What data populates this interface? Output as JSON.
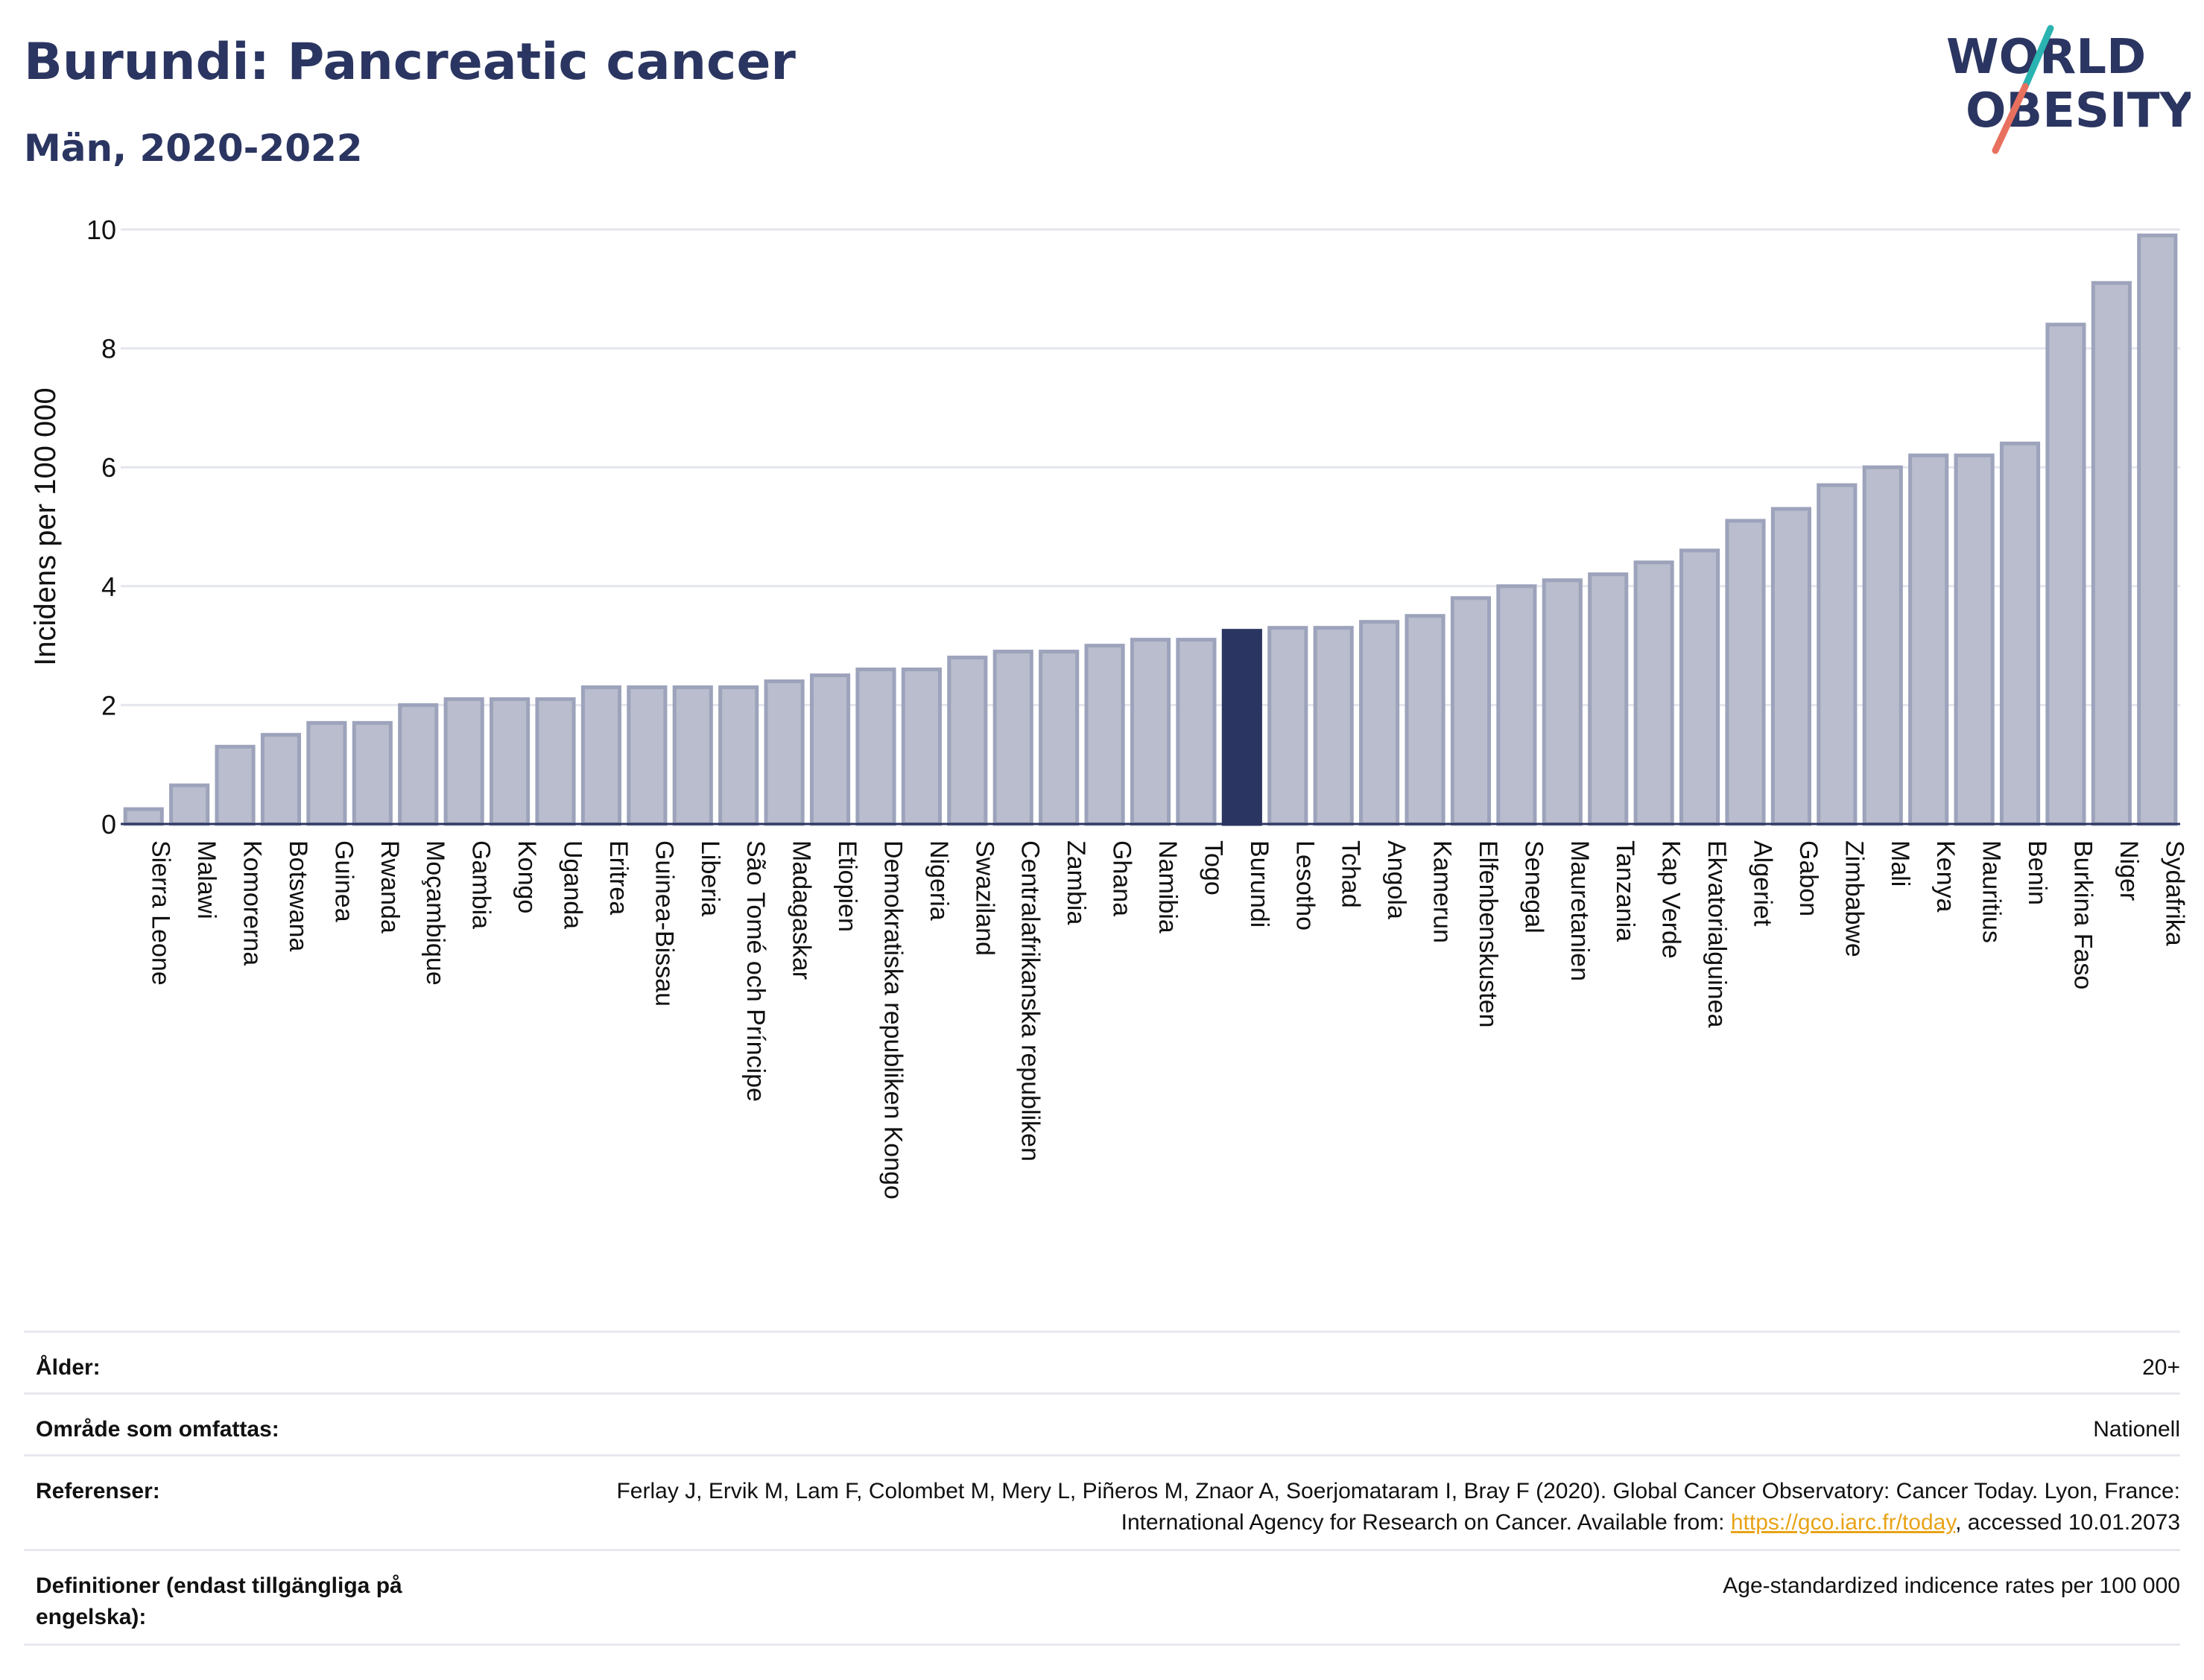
{
  "header": {
    "title": "Burundi: Pancreatic cancer",
    "subtitle": "Män, 2020-2022"
  },
  "logo": {
    "line1": "WORLD",
    "line2": "OBESITY",
    "icon": "world-obesity-logo"
  },
  "colors": {
    "bar": "#b9bdcd",
    "bar_border": "#9da3bb",
    "highlight": "#2b3561",
    "title": "#2b3561",
    "grid": "#e4e6ee"
  },
  "chart_data": {
    "type": "bar",
    "title": "Burundi: Pancreatic cancer",
    "subtitle": "Män, 2020-2022",
    "ylabel": "Incidens per 100 000",
    "xlabel": "",
    "ylim": [
      0,
      10
    ],
    "yticks": [
      0,
      2,
      4,
      6,
      8,
      10
    ],
    "grid": true,
    "highlight": "Burundi",
    "categories": [
      "Sierra Leone",
      "Malawi",
      "Komorerna",
      "Botswana",
      "Guinea",
      "Rwanda",
      "Moçambique",
      "Gambia",
      "Kongo",
      "Uganda",
      "Eritrea",
      "Guinea-Bissau",
      "Liberia",
      "São Tomé och Príncipe",
      "Madagaskar",
      "Etiopien",
      "Demokratiska republiken Kongo",
      "Nigeria",
      "Swaziland",
      "Centralafrikanska republiken",
      "Zambia",
      "Ghana",
      "Namibia",
      "Togo",
      "Burundi",
      "Lesotho",
      "Tchad",
      "Angola",
      "Kamerun",
      "Elfenbenskusten",
      "Senegal",
      "Mauretanien",
      "Tanzania",
      "Kap Verde",
      "Ekvatorialguinea",
      "Algeriet",
      "Gabon",
      "Zimbabwe",
      "Mali",
      "Kenya",
      "Mauritius",
      "Benin",
      "Burkina Faso",
      "Niger",
      "Sydafrika"
    ],
    "values": [
      0.25,
      0.65,
      1.3,
      1.5,
      1.7,
      1.7,
      2.0,
      2.1,
      2.1,
      2.1,
      2.3,
      2.3,
      2.3,
      2.3,
      2.4,
      2.5,
      2.6,
      2.6,
      2.8,
      2.9,
      2.9,
      3.0,
      3.1,
      3.1,
      3.25,
      3.3,
      3.3,
      3.4,
      3.5,
      3.8,
      4.0,
      4.1,
      4.2,
      4.4,
      4.6,
      5.1,
      5.3,
      5.7,
      6.0,
      6.2,
      6.2,
      6.4,
      8.4,
      9.1,
      9.9
    ]
  },
  "meta": [
    {
      "label": "Ålder:",
      "value": "20+"
    },
    {
      "label": "Område som omfattas:",
      "value": "Nationell"
    },
    {
      "label": "Referenser:",
      "value_pre": "Ferlay J, Ervik M, Lam F, Colombet M, Mery L, Piñeros M, Znaor A, Soerjomataram I, Bray F (2020). Global Cancer Observatory: Cancer Today. Lyon, France: International Agency for Research on Cancer. Available from: ",
      "link": "https://gco.iarc.fr/today",
      "value_post": ", accessed 10.01.2073"
    },
    {
      "label": "Definitioner (endast tillgängliga på engelska):",
      "value": "Age-standardized indicence rates per 100 000"
    }
  ]
}
